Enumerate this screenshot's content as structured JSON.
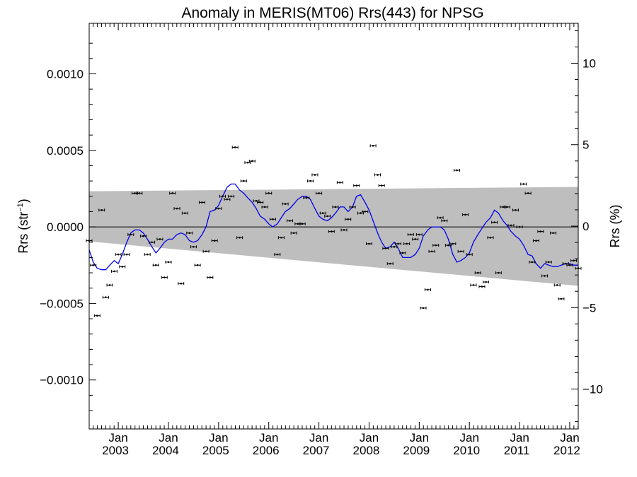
{
  "chart_data": {
    "type": "scatter",
    "title": "Anomaly in MERIS(MT06) Rrs(443) for NPSG",
    "ylabel_left_main": "Rrs (str",
    "ylabel_left_sup": "−1",
    "ylabel_left_close": ")",
    "ylabel_right": "Rrs (%)",
    "xlim": [
      2002.42,
      2012.17
    ],
    "ylim_left": [
      -0.00132,
      0.00133
    ],
    "ylim_right": [
      -12.45,
      12.45
    ],
    "grid": false,
    "zero_line": true,
    "left_ticks": [
      {
        "value": 0.001,
        "label": "0.0010"
      },
      {
        "value": 0.0005,
        "label": "0.0005"
      },
      {
        "value": 0.0,
        "label": "0.0000"
      },
      {
        "value": -0.0005,
        "label": "−0.0005"
      },
      {
        "value": -0.001,
        "label": "−0.0010"
      }
    ],
    "right_ticks": [
      {
        "value": 10,
        "label": "10"
      },
      {
        "value": 5,
        "label": "5"
      },
      {
        "value": 0,
        "label": "0"
      },
      {
        "value": -5,
        "label": "−5"
      },
      {
        "value": -10,
        "label": "−10"
      }
    ],
    "x_ticks": [
      {
        "value": 2003.0,
        "month": "Jan",
        "year": "2003"
      },
      {
        "value": 2004.0,
        "month": "Jan",
        "year": "2004"
      },
      {
        "value": 2005.0,
        "month": "Jan",
        "year": "2005"
      },
      {
        "value": 2006.0,
        "month": "Jan",
        "year": "2006"
      },
      {
        "value": 2007.0,
        "month": "Jan",
        "year": "2007"
      },
      {
        "value": 2008.0,
        "month": "Jan",
        "year": "2008"
      },
      {
        "value": 2009.0,
        "month": "Jan",
        "year": "2009"
      },
      {
        "value": 2010.0,
        "month": "Jan",
        "year": "2010"
      },
      {
        "value": 2011.0,
        "month": "Jan",
        "year": "2011"
      },
      {
        "value": 2012.0,
        "month": "Jan",
        "year": "2012"
      }
    ],
    "uncertainty_band": {
      "x": [
        2002.42,
        2012.17
      ],
      "upper": [
        0.000233,
        0.000261
      ],
      "lower": [
        -9.5e-05,
        -0.000385
      ],
      "color": "#bebebe"
    },
    "series": [
      {
        "style": "points_with_errorbars",
        "color": "#000000",
        "x": [
          2002.42,
          2002.5,
          2002.58,
          2002.67,
          2002.75,
          2002.83,
          2002.92,
          2003.0,
          2003.08,
          2003.17,
          2003.25,
          2003.33,
          2003.42,
          2003.5,
          2003.58,
          2003.67,
          2003.75,
          2003.83,
          2003.92,
          2004.0,
          2004.08,
          2004.17,
          2004.25,
          2004.33,
          2004.42,
          2004.5,
          2004.58,
          2004.67,
          2004.75,
          2004.83,
          2004.92,
          2005.0,
          2005.08,
          2005.17,
          2005.25,
          2005.33,
          2005.42,
          2005.5,
          2005.58,
          2005.67,
          2005.75,
          2005.83,
          2005.92,
          2006.0,
          2006.08,
          2006.17,
          2006.25,
          2006.33,
          2006.42,
          2006.5,
          2006.58,
          2006.67,
          2006.75,
          2006.83,
          2006.92,
          2007.0,
          2007.08,
          2007.17,
          2007.25,
          2007.33,
          2007.42,
          2007.5,
          2007.58,
          2007.67,
          2007.75,
          2007.83,
          2007.92,
          2008.0,
          2008.08,
          2008.17,
          2008.25,
          2008.33,
          2008.42,
          2008.5,
          2008.58,
          2008.67,
          2008.75,
          2008.83,
          2008.92,
          2009.0,
          2009.08,
          2009.17,
          2009.25,
          2009.33,
          2009.42,
          2009.5,
          2009.58,
          2009.67,
          2009.75,
          2009.83,
          2009.92,
          2010.0,
          2010.08,
          2010.17,
          2010.25,
          2010.33,
          2010.42,
          2010.5,
          2010.58,
          2010.67,
          2010.75,
          2010.83,
          2010.92,
          2011.0,
          2011.08,
          2011.17,
          2011.25,
          2011.33,
          2011.42,
          2011.5,
          2011.58,
          2011.67,
          2011.75,
          2011.83,
          2011.92,
          2012.0,
          2012.08,
          2012.17
        ],
        "y": [
          -9e-05,
          -0.00025,
          -0.00058,
          0.00011,
          -0.00046,
          -0.00038,
          -0.00029,
          -0.00018,
          -0.00026,
          -0.00018,
          -5e-05,
          0.00022,
          0.00022,
          -6e-05,
          -0.00018,
          -0.0001,
          -0.00025,
          -8e-05,
          -0.00033,
          -0.00023,
          0.00022,
          0.00012,
          -0.00037,
          9e-05,
          -4e-05,
          -0.00013,
          -0.00025,
          0.00016,
          -0.00016,
          -0.00033,
          -9e-05,
          0.00012,
          0.0002,
          0.00018,
          0.0002,
          0.00052,
          -7e-05,
          0.0003,
          0.00042,
          0.00043,
          0.00017,
          0.00016,
          0.00013,
          0.00022,
          5e-05,
          -0.00018,
          -7e-05,
          0.00015,
          4e-05,
          -4e-05,
          2e-05,
          2e-05,
          0.00019,
          0.0003,
          0.00034,
          0.00022,
          9e-05,
          7e-05,
          -3e-05,
          0.00013,
          0.00029,
          -2e-05,
          5e-05,
          0.00013,
          0.00027,
          9e-05,
          0.0001,
          -0.00011,
          0.00053,
          0.00034,
          0.00027,
          -0.00014,
          -0.00024,
          -0.00013,
          -0.00011,
          -0.00017,
          -0.00011,
          -5e-05,
          -8e-05,
          -5e-05,
          -0.00053,
          -0.00041,
          -0.00016,
          -0.00012,
          6e-05,
          4e-05,
          -0.00012,
          -0.00011,
          0.00037,
          -0.00016,
          8e-05,
          -0.00018,
          -0.00038,
          -0.0003,
          -0.00039,
          -0.00036,
          -7e-05,
          3e-05,
          -0.0003,
          0.00013,
          0.00013,
          1e-05,
          0.00011,
          0.0,
          0.00028,
          0.00022,
          -0.00023,
          -9e-05,
          -3e-05,
          -0.00032,
          -0.00023,
          -4e-05,
          -0.00038,
          -0.00047,
          -0.00024,
          -0.00025,
          -0.00022,
          -0.00027
        ]
      },
      {
        "style": "line",
        "color": "#0000ee",
        "x": [
          2002.42,
          2002.5,
          2002.58,
          2002.67,
          2002.75,
          2002.83,
          2002.92,
          2003.0,
          2003.08,
          2003.17,
          2003.25,
          2003.33,
          2003.42,
          2003.5,
          2003.58,
          2003.67,
          2003.75,
          2003.83,
          2003.92,
          2004.0,
          2004.08,
          2004.17,
          2004.25,
          2004.33,
          2004.42,
          2004.5,
          2004.58,
          2004.67,
          2004.75,
          2004.83,
          2004.92,
          2005.0,
          2005.08,
          2005.17,
          2005.25,
          2005.33,
          2005.42,
          2005.5,
          2005.58,
          2005.67,
          2005.75,
          2005.83,
          2005.92,
          2006.0,
          2006.08,
          2006.17,
          2006.25,
          2006.33,
          2006.42,
          2006.5,
          2006.58,
          2006.67,
          2006.75,
          2006.83,
          2006.92,
          2007.0,
          2007.08,
          2007.17,
          2007.25,
          2007.33,
          2007.42,
          2007.5,
          2007.58,
          2007.67,
          2007.75,
          2007.83,
          2007.92,
          2008.0,
          2008.08,
          2008.17,
          2008.25,
          2008.33,
          2008.42,
          2008.5,
          2008.58,
          2008.67,
          2008.75,
          2008.83,
          2008.92,
          2009.0,
          2009.08,
          2009.17,
          2009.25,
          2009.33,
          2009.42,
          2009.5,
          2009.58,
          2009.67,
          2009.75,
          2009.83,
          2009.92,
          2010.0,
          2010.08,
          2010.17,
          2010.25,
          2010.33,
          2010.42,
          2010.5,
          2010.58,
          2010.67,
          2010.75,
          2010.83,
          2010.92,
          2011.0,
          2011.08,
          2011.17,
          2011.25,
          2011.33,
          2011.42,
          2011.5,
          2011.58,
          2011.67,
          2011.75,
          2011.83,
          2011.92,
          2012.0,
          2012.08,
          2012.17
        ],
        "y": [
          -0.00015,
          -0.00023,
          -0.00027,
          -0.00028,
          -0.00028,
          -0.00025,
          -0.00022,
          -0.00024,
          -0.00018,
          -0.0001,
          -4e-05,
          -2e-05,
          -2e-05,
          -4e-05,
          -8e-05,
          -0.00013,
          -0.00017,
          -0.00014,
          -0.0001,
          -8e-05,
          -8e-05,
          -5e-05,
          -4e-05,
          -5e-05,
          -9e-05,
          -0.0001,
          -9e-05,
          -5e-05,
          0.0,
          0.0001,
          0.00011,
          0.00014,
          0.0002,
          0.00026,
          0.00028,
          0.00028,
          0.00024,
          0.00022,
          0.00019,
          0.00016,
          0.00012,
          7e-05,
          5e-05,
          2e-05,
          0.0,
          2e-05,
          6e-05,
          0.0001,
          0.00012,
          0.00015,
          0.00018,
          0.0002,
          0.0002,
          0.00018,
          0.00012,
          7e-05,
          5e-05,
          4e-05,
          6e-05,
          9e-05,
          0.00013,
          0.00013,
          0.0001,
          0.00013,
          0.0002,
          0.00021,
          0.00016,
          0.00011,
          4e-05,
          -4e-05,
          -0.0001,
          -0.00014,
          -0.00013,
          -0.0001,
          -0.00014,
          -0.0002,
          -0.0002,
          -0.0002,
          -0.00018,
          -0.00014,
          -6e-05,
          -2e-05,
          0.0,
          0.0,
          0.0,
          -2e-05,
          -8e-05,
          -0.00018,
          -0.00023,
          -0.00022,
          -0.0002,
          -0.00017,
          -0.0001,
          -5e-05,
          -1e-05,
          3e-05,
          6e-05,
          0.00011,
          9e-05,
          4e-05,
          1e-05,
          -3e-05,
          -6e-05,
          -8e-05,
          -0.00012,
          -0.00018,
          -0.00019,
          -0.00024,
          -0.00027,
          -0.00024,
          -0.00025,
          -0.00026,
          -0.00026,
          -0.00025,
          -0.00024,
          -0.00024,
          -0.00025,
          -0.00025
        ]
      }
    ]
  }
}
